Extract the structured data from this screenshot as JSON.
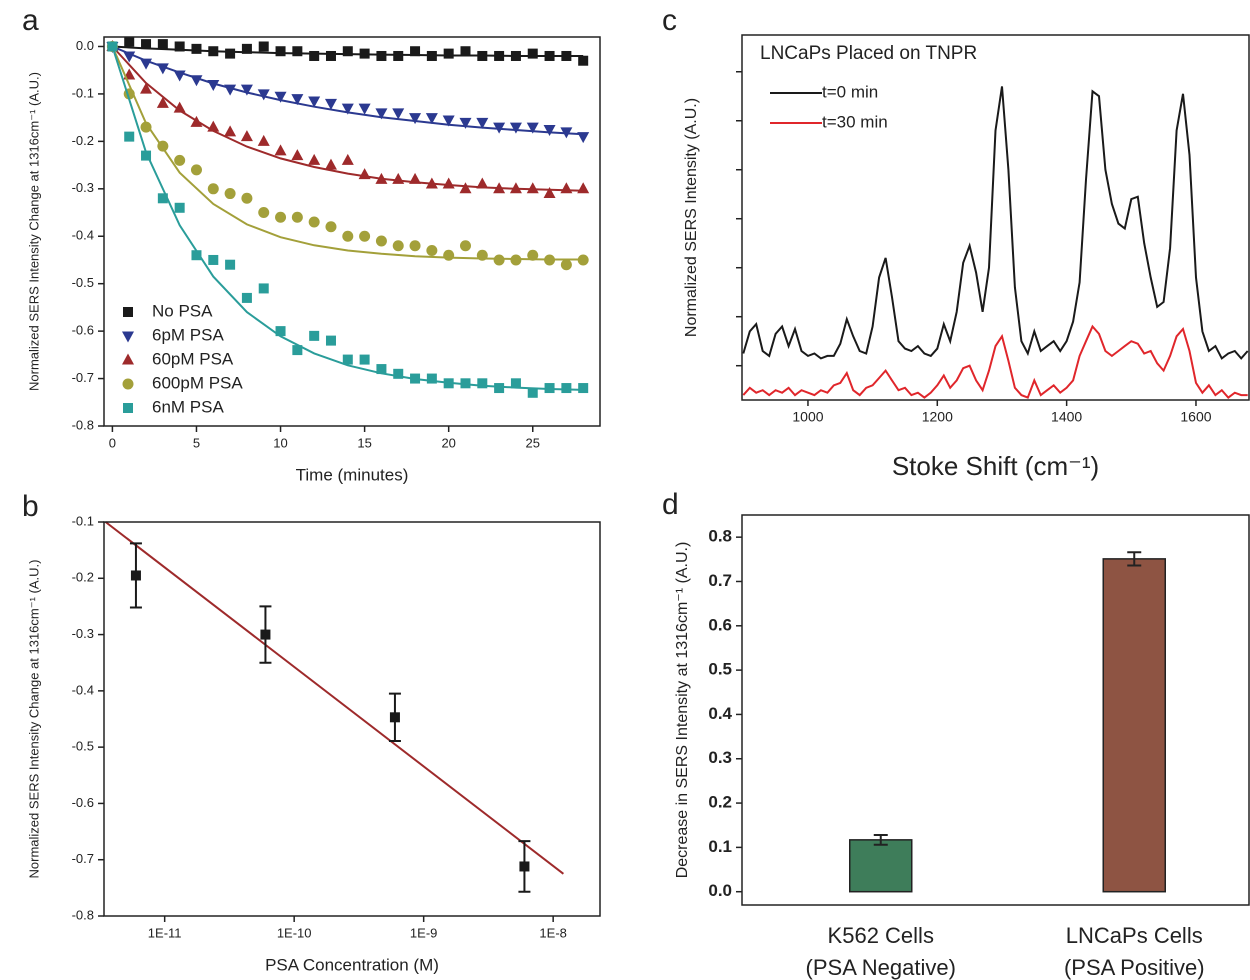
{
  "chart_data": [
    {
      "type": "scatter",
      "panel_label": "a",
      "xlabel": "Time (minutes)",
      "ylabel": "Normalized SERS Intensity Change at 1316cm⁻¹ (A.U.)",
      "xlim": [
        -0.5,
        29
      ],
      "ylim": [
        -0.8,
        0.02
      ],
      "xticks": [
        0,
        5,
        10,
        15,
        20,
        25
      ],
      "yticks": [
        {
          "value": 0,
          "label": "0.0"
        },
        -0.1,
        -0.2,
        -0.3,
        -0.4,
        -0.5,
        -0.6,
        -0.7,
        -0.8
      ],
      "legend": "lower left",
      "x": [
        0,
        1,
        2,
        3,
        4,
        5,
        6,
        7,
        8,
        9,
        10,
        11,
        12,
        13,
        14,
        15,
        16,
        17,
        18,
        19,
        20,
        21,
        22,
        23,
        24,
        25,
        26,
        27,
        28
      ],
      "fit_x": [
        0,
        2,
        4,
        6,
        8,
        10,
        12,
        14,
        16,
        18,
        20,
        22,
        24,
        26,
        28
      ],
      "series": [
        {
          "name": "No PSA",
          "color": "#1a1a1a",
          "marker": "square",
          "values": [
            0,
            0.01,
            0.005,
            0.005,
            0,
            -0.005,
            -0.01,
            -0.015,
            -0.005,
            0,
            -0.01,
            -0.01,
            -0.02,
            -0.02,
            -0.01,
            -0.015,
            -0.02,
            -0.02,
            -0.01,
            -0.02,
            -0.015,
            -0.01,
            -0.02,
            -0.02,
            -0.02,
            -0.015,
            -0.02,
            -0.02,
            -0.03
          ],
          "fit": [
            0,
            -0.004,
            -0.007,
            -0.01,
            -0.012,
            -0.014,
            -0.015,
            -0.016,
            -0.017,
            -0.018,
            -0.019,
            -0.019,
            -0.02,
            -0.02,
            -0.02
          ]
        },
        {
          "name": "6pM PSA",
          "color": "#2b3990",
          "marker": "triangle-down",
          "values": [
            0,
            -0.02,
            -0.035,
            -0.045,
            -0.06,
            -0.07,
            -0.08,
            -0.09,
            -0.09,
            -0.1,
            -0.105,
            -0.11,
            -0.115,
            -0.12,
            -0.13,
            -0.13,
            -0.14,
            -0.14,
            -0.15,
            -0.15,
            -0.155,
            -0.16,
            -0.16,
            -0.17,
            -0.17,
            -0.17,
            -0.175,
            -0.18,
            -0.19
          ],
          "fit": [
            0,
            -0.03,
            -0.055,
            -0.078,
            -0.097,
            -0.113,
            -0.127,
            -0.139,
            -0.149,
            -0.157,
            -0.165,
            -0.171,
            -0.176,
            -0.181,
            -0.185
          ]
        },
        {
          "name": "60pM PSA",
          "color": "#9e2a2b",
          "marker": "triangle-up",
          "values": [
            0,
            -0.06,
            -0.09,
            -0.12,
            -0.13,
            -0.16,
            -0.17,
            -0.18,
            -0.19,
            -0.2,
            -0.22,
            -0.23,
            -0.24,
            -0.25,
            -0.24,
            -0.27,
            -0.28,
            -0.28,
            -0.28,
            -0.29,
            -0.29,
            -0.3,
            -0.29,
            -0.3,
            -0.3,
            -0.3,
            -0.31,
            -0.3,
            -0.3
          ],
          "fit": [
            0,
            -0.077,
            -0.135,
            -0.178,
            -0.211,
            -0.236,
            -0.254,
            -0.268,
            -0.279,
            -0.286,
            -0.292,
            -0.297,
            -0.3,
            -0.302,
            -0.304
          ]
        },
        {
          "name": "600pM PSA",
          "color": "#a3a03a",
          "marker": "circle",
          "values": [
            0,
            -0.1,
            -0.17,
            -0.21,
            -0.24,
            -0.26,
            -0.3,
            -0.31,
            -0.32,
            -0.35,
            -0.36,
            -0.36,
            -0.37,
            -0.38,
            -0.4,
            -0.4,
            -0.41,
            -0.42,
            -0.42,
            -0.43,
            -0.44,
            -0.42,
            -0.44,
            -0.45,
            -0.45,
            -0.44,
            -0.45,
            -0.46,
            -0.45
          ],
          "fit": [
            0,
            -0.162,
            -0.266,
            -0.332,
            -0.375,
            -0.402,
            -0.419,
            -0.43,
            -0.437,
            -0.442,
            -0.445,
            -0.447,
            -0.448,
            -0.449,
            -0.449
          ]
        },
        {
          "name": "6nM PSA",
          "color": "#2a9d9a",
          "marker": "square",
          "values": [
            0,
            -0.19,
            -0.23,
            -0.32,
            -0.34,
            -0.44,
            -0.45,
            -0.46,
            -0.53,
            -0.51,
            -0.6,
            -0.64,
            -0.61,
            -0.62,
            -0.66,
            -0.66,
            -0.68,
            -0.69,
            -0.7,
            -0.7,
            -0.71,
            -0.71,
            -0.71,
            -0.72,
            -0.71,
            -0.73,
            -0.72,
            -0.72,
            -0.72
          ],
          "fit": [
            0,
            -0.223,
            -0.377,
            -0.485,
            -0.56,
            -0.611,
            -0.647,
            -0.672,
            -0.689,
            -0.701,
            -0.709,
            -0.715,
            -0.719,
            -0.722,
            -0.724
          ]
        }
      ]
    },
    {
      "type": "scatter",
      "panel_label": "b",
      "xlabel": "PSA Concentration (M)",
      "ylabel": "Normalized SERS Intensity Change at 1316cm⁻¹ (A.U.)",
      "xscale": "log",
      "xlim": [
        3.4e-12,
        2.3e-08
      ],
      "ylim": [
        -0.8,
        -0.1
      ],
      "xticks": [
        {
          "value": 1e-11,
          "label": "1E-11"
        },
        {
          "value": 1e-10,
          "label": "1E-10"
        },
        {
          "value": 1e-09,
          "label": "1E-9"
        },
        {
          "value": 1e-08,
          "label": "1E-8"
        }
      ],
      "yticks": [
        -0.1,
        -0.2,
        -0.3,
        -0.4,
        -0.5,
        -0.6,
        -0.7,
        -0.8
      ],
      "x": [
        6e-12,
        6e-11,
        6e-10,
        6e-09
      ],
      "fit_x": [
        3.5e-12,
        1.2e-08
      ],
      "fit_color": "#9e2a2b",
      "series": [
        {
          "color": "#1a1a1a",
          "marker": "square",
          "values": [
            -0.195,
            -0.3,
            -0.447,
            -0.712
          ],
          "errors": [
            0.057,
            0.05,
            0.042,
            0.045
          ],
          "fit": [
            -0.1,
            -0.725
          ]
        }
      ]
    },
    {
      "type": "line",
      "panel_label": "c",
      "annotation": "LNCaPs Placed on TNPR",
      "xlabel": "Stoke Shift (cm⁻¹)",
      "ylabel": "Normalized SERS Intensity (A.U.)",
      "xlim": [
        898,
        1682
      ],
      "ylim": [
        -0.7,
        6.75
      ],
      "xticks": [
        1000,
        1200,
        1400,
        1600
      ],
      "yticks": [
        0,
        1,
        2,
        3,
        4,
        5,
        6
      ],
      "show_ytick_labels": false,
      "legend": "upper left",
      "x": [
        900,
        910,
        920,
        930,
        940,
        950,
        960,
        970,
        980,
        990,
        1000,
        1010,
        1020,
        1030,
        1040,
        1050,
        1060,
        1070,
        1080,
        1090,
        1100,
        1110,
        1120,
        1130,
        1140,
        1150,
        1160,
        1170,
        1180,
        1190,
        1200,
        1210,
        1220,
        1230,
        1240,
        1250,
        1260,
        1270,
        1280,
        1290,
        1300,
        1310,
        1320,
        1330,
        1340,
        1350,
        1360,
        1370,
        1380,
        1390,
        1400,
        1410,
        1420,
        1430,
        1440,
        1450,
        1460,
        1470,
        1480,
        1490,
        1500,
        1510,
        1520,
        1530,
        1540,
        1550,
        1560,
        1570,
        1580,
        1590,
        1600,
        1610,
        1620,
        1630,
        1640,
        1650,
        1660,
        1670,
        1680
      ],
      "series": [
        {
          "name": "t=0 min",
          "color": "#1a1a1a",
          "values": [
            0.25,
            0.7,
            0.85,
            0.3,
            0.2,
            0.65,
            0.8,
            0.4,
            0.75,
            0.3,
            0.2,
            0.25,
            0.15,
            0.2,
            0.2,
            0.45,
            0.95,
            0.6,
            0.3,
            0.25,
            0.8,
            1.8,
            2.2,
            1.4,
            0.5,
            0.35,
            0.3,
            0.4,
            0.25,
            0.2,
            0.35,
            0.85,
            0.5,
            1.1,
            2.1,
            2.45,
            1.9,
            1.1,
            2.0,
            4.8,
            5.7,
            4.0,
            1.6,
            0.5,
            0.25,
            0.7,
            0.3,
            0.4,
            0.5,
            0.3,
            0.5,
            0.9,
            1.7,
            3.8,
            5.6,
            5.5,
            4.0,
            3.3,
            2.9,
            2.8,
            3.4,
            3.45,
            2.5,
            1.8,
            1.2,
            1.3,
            2.4,
            4.8,
            5.55,
            4.3,
            1.8,
            0.7,
            0.3,
            0.4,
            0.15,
            0.25,
            0.3,
            0.15,
            0.3
          ]
        },
        {
          "name": "t=30 min",
          "color": "#e0262b",
          "values": [
            -0.6,
            -0.45,
            -0.55,
            -0.5,
            -0.6,
            -0.5,
            -0.55,
            -0.45,
            -0.6,
            -0.5,
            -0.55,
            -0.6,
            -0.5,
            -0.55,
            -0.4,
            -0.35,
            -0.15,
            -0.5,
            -0.6,
            -0.45,
            -0.4,
            -0.25,
            -0.1,
            -0.3,
            -0.5,
            -0.45,
            -0.6,
            -0.55,
            -0.65,
            -0.55,
            -0.4,
            -0.2,
            -0.45,
            -0.3,
            -0.05,
            0,
            -0.3,
            -0.5,
            -0.1,
            0.4,
            0.6,
            0.1,
            -0.45,
            -0.6,
            -0.65,
            -0.3,
            -0.6,
            -0.5,
            -0.4,
            -0.55,
            -0.45,
            -0.3,
            0.2,
            0.5,
            0.8,
            0.65,
            0.3,
            0.2,
            0.3,
            0.4,
            0.5,
            0.45,
            0.25,
            0.3,
            0.05,
            -0.1,
            0.2,
            0.6,
            0.75,
            0.3,
            -0.35,
            -0.55,
            -0.4,
            -0.6,
            -0.5,
            -0.65,
            -0.55,
            -0.6,
            -0.6
          ]
        }
      ]
    },
    {
      "type": "bar",
      "panel_label": "d",
      "ylabel": "Decrease in SERS Intensity at 1316cm⁻¹ (A.U.)",
      "ylim": [
        -0.03,
        0.85
      ],
      "yticks": [
        {
          "value": 0,
          "label": "0.0"
        },
        0.1,
        0.2,
        0.3,
        0.4,
        0.5,
        0.6,
        0.7,
        0.8
      ],
      "categories": [
        [
          "K562 Cells",
          "(PSA Negative)"
        ],
        [
          "LNCaPs Cells",
          "(PSA Positive)"
        ]
      ],
      "values": [
        0.117,
        0.751
      ],
      "errors": [
        0.011,
        0.015
      ],
      "colors": [
        "#3e7d5a",
        "#8e5443"
      ]
    }
  ]
}
